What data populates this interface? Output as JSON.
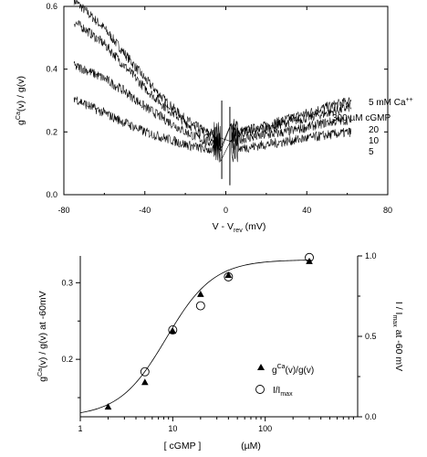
{
  "chart_data": [
    {
      "type": "line",
      "xlabel": "V - Vrev (mV)",
      "xlabel_main": "V - V",
      "xlabel_sub": "rev",
      "xlabel_unit": " (mV)",
      "ylabel": "gCa(v) / g(v)",
      "ylabel_main": "g",
      "ylabel_sup": "Ca",
      "ylabel_rest": "(v) / g(v)",
      "xlim": [
        -80,
        80
      ],
      "ylim": [
        0,
        0.6
      ],
      "xticks": [
        "-80",
        "-40",
        "0",
        "40",
        "80"
      ],
      "xtick_values": [
        -80,
        -40,
        0,
        40,
        80
      ],
      "yticks": [
        "0.0",
        "0.2",
        "0.4",
        "0.6"
      ],
      "ytick_values": [
        0,
        0.2,
        0.4,
        0.6
      ],
      "grid": false,
      "annotation_ion": "5 mM Ca",
      "annotation_ion_sup": "++",
      "annotation_cgmp": "300 µM cGMP",
      "series": [
        {
          "name": "300",
          "x": [
            -75,
            -70,
            -60,
            -50,
            -40,
            -30,
            -20,
            -10,
            -3,
            3,
            10,
            20,
            30,
            40,
            50,
            62
          ],
          "y": [
            0.62,
            0.59,
            0.53,
            0.45,
            0.37,
            0.3,
            0.24,
            0.2,
            0.19,
            0.2,
            0.205,
            0.22,
            0.24,
            0.26,
            0.28,
            0.3
          ]
        },
        {
          "name": "20",
          "x": [
            -75,
            -70,
            -60,
            -50,
            -40,
            -30,
            -20,
            -10,
            -3,
            3,
            10,
            20,
            30,
            40,
            50,
            62
          ],
          "y": [
            0.55,
            0.53,
            0.48,
            0.41,
            0.34,
            0.28,
            0.23,
            0.19,
            0.18,
            0.19,
            0.2,
            0.21,
            0.23,
            0.245,
            0.26,
            0.28
          ]
        },
        {
          "name": "10",
          "x": [
            -75,
            -70,
            -60,
            -50,
            -40,
            -30,
            -20,
            -10,
            -3,
            3,
            10,
            20,
            30,
            40,
            50,
            62
          ],
          "y": [
            0.41,
            0.4,
            0.37,
            0.33,
            0.28,
            0.24,
            0.2,
            0.17,
            0.16,
            0.17,
            0.18,
            0.19,
            0.2,
            0.215,
            0.23,
            0.24
          ]
        },
        {
          "name": "5",
          "x": [
            -75,
            -70,
            -60,
            -50,
            -40,
            -30,
            -20,
            -10,
            -3,
            3,
            10,
            20,
            30,
            40,
            50,
            62
          ],
          "y": [
            0.31,
            0.29,
            0.26,
            0.23,
            0.2,
            0.18,
            0.16,
            0.145,
            0.14,
            0.145,
            0.15,
            0.16,
            0.17,
            0.18,
            0.19,
            0.2
          ]
        }
      ]
    },
    {
      "type": "scatter",
      "xlabel": "[ cGMP ] (µM)",
      "xlabel_left": "[ cGMP ]",
      "xlabel_right": "(µM)",
      "xscale": "log",
      "xlim": [
        1,
        1000
      ],
      "xticks": [
        "1",
        "10",
        "100"
      ],
      "xtick_values": [
        1,
        10,
        100
      ],
      "ylabel": "gCa(v) / g(v) at -60mV",
      "ylabel_main": "g",
      "ylabel_sup": "Ca",
      "ylabel_rest": "(v) / g(v) at -60mV",
      "ylim": [
        0.125,
        0.335
      ],
      "yticks": [
        "0.2",
        "0.3"
      ],
      "ytick_values": [
        0.2,
        0.3
      ],
      "y2label": "I / Imax at -60 mV",
      "y2label_main": "I / I",
      "y2label_sub": "max",
      "y2label_rest": " at -60 mV",
      "y2lim": [
        0,
        1
      ],
      "y2ticks": [
        "0.0",
        "0.5",
        "1.0"
      ],
      "y2tick_values": [
        0,
        0.5,
        1.0
      ],
      "grid": false,
      "legend_position": "bottom-right",
      "series": [
        {
          "name": "gCa(v)/g(v)",
          "name_main": "g",
          "name_sup": "Ca",
          "name_rest": "(v)/g(v)",
          "marker": "triangle",
          "axis": "left",
          "x": [
            2,
            5,
            10,
            20,
            40,
            300
          ],
          "y": [
            0.138,
            0.17,
            0.237,
            0.285,
            0.31,
            0.328
          ]
        },
        {
          "name": "I/Imax",
          "name_main": "I/I",
          "name_sub": "max",
          "marker": "circle",
          "axis": "right",
          "x": [
            5,
            10,
            20,
            40,
            300
          ],
          "y": [
            0.28,
            0.54,
            0.69,
            0.87,
            0.99
          ]
        }
      ],
      "fit": {
        "form": "hill",
        "ymin": 0.125,
        "ymax": 0.33,
        "k": 8.5,
        "n": 1.7
      }
    }
  ]
}
